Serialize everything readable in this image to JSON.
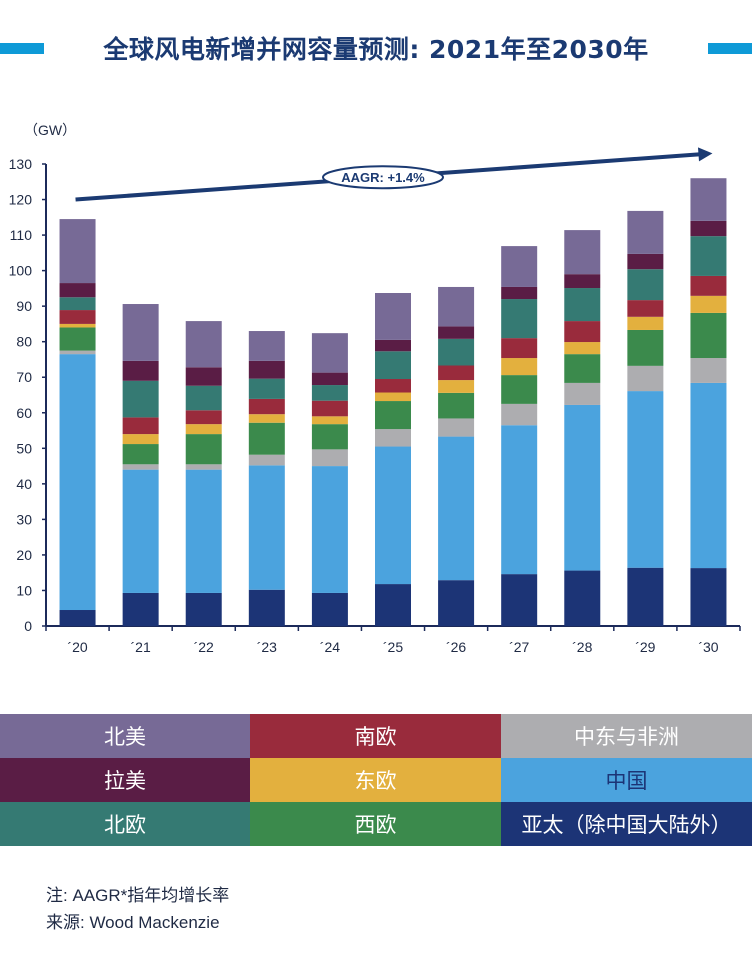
{
  "header": {
    "title": "全球风电新增并网容量预测: 2021年至2030年"
  },
  "chart_data": {
    "type": "bar",
    "stacked": true,
    "title": "全球风电新增并网容量预测: 2021年至2030年",
    "xlabel": "",
    "ylabel": "（GW）",
    "ylim": [
      0,
      130
    ],
    "yticks": [
      0,
      10,
      20,
      30,
      40,
      50,
      60,
      70,
      80,
      90,
      100,
      110,
      120,
      130
    ],
    "grid": false,
    "legend_position": "bottom",
    "categories": [
      "´20",
      "´21",
      "´22",
      "´23",
      "´24",
      "´25",
      "´26",
      "´27",
      "´28",
      "´29",
      "´30"
    ],
    "series": [
      {
        "name": "亚太（除中国大陆外）",
        "color": "#1c3476",
        "values": [
          4.5,
          9.3,
          9.3,
          10.2,
          9.3,
          11.8,
          12.9,
          14.6,
          15.6,
          16.4,
          16.3
        ]
      },
      {
        "name": "中国",
        "color": "#4ba3de",
        "values": [
          72.0,
          34.7,
          34.7,
          35.0,
          35.7,
          38.7,
          40.4,
          41.9,
          46.6,
          49.7,
          52.1
        ]
      },
      {
        "name": "中东与非洲",
        "color": "#adadb0",
        "values": [
          1.0,
          1.5,
          1.5,
          3.0,
          4.7,
          4.9,
          5.1,
          6.0,
          6.2,
          7.1,
          7.0
        ]
      },
      {
        "name": "西欧",
        "color": "#3b8a4c",
        "values": [
          6.5,
          5.7,
          8.5,
          9.0,
          7.1,
          7.9,
          7.2,
          8.1,
          8.1,
          10.1,
          12.7
        ]
      },
      {
        "name": "东欧",
        "color": "#e3b03e",
        "values": [
          1.0,
          2.8,
          2.8,
          2.4,
          2.2,
          2.4,
          3.6,
          4.8,
          3.4,
          3.7,
          4.8
        ]
      },
      {
        "name": "南欧",
        "color": "#992b3c",
        "values": [
          3.9,
          4.7,
          3.9,
          4.3,
          4.4,
          3.8,
          4.1,
          5.6,
          5.9,
          4.7,
          5.6
        ]
      },
      {
        "name": "北欧",
        "color": "#357a73",
        "values": [
          3.6,
          10.3,
          6.9,
          5.7,
          4.4,
          7.8,
          7.5,
          11.0,
          9.3,
          8.7,
          11.2
        ]
      },
      {
        "name": "拉美",
        "color": "#5a1d45",
        "values": [
          4.0,
          5.6,
          5.2,
          5.0,
          3.5,
          3.2,
          3.5,
          3.4,
          3.9,
          4.3,
          4.3
        ]
      },
      {
        "name": "北美",
        "color": "#776a96",
        "values": [
          18.0,
          16.0,
          13.0,
          8.4,
          11.1,
          13.2,
          11.1,
          11.5,
          12.4,
          12.1,
          12.0
        ]
      }
    ],
    "totals": [
      114.5,
      90.6,
      85.8,
      83.0,
      82.4,
      93.7,
      95.4,
      106.9,
      111.4,
      116.8,
      126.0
    ],
    "annotation": {
      "text": "AAGR: +1.4%",
      "type": "trend-arrow",
      "from_value": 120,
      "to_value": 133
    }
  },
  "legend": [
    {
      "label": "北美",
      "bg": "#776a96",
      "fg": "#ffffff"
    },
    {
      "label": "南欧",
      "bg": "#992b3c",
      "fg": "#ffffff"
    },
    {
      "label": "中东与非洲",
      "bg": "#adadb0",
      "fg": "#ffffff"
    },
    {
      "label": "拉美",
      "bg": "#5a1d45",
      "fg": "#ffffff"
    },
    {
      "label": "东欧",
      "bg": "#e3b03e",
      "fg": "#ffffff"
    },
    {
      "label": "中国",
      "bg": "#4ba3de",
      "fg": "#1c3476"
    },
    {
      "label": "北欧",
      "bg": "#357a73",
      "fg": "#ffffff"
    },
    {
      "label": "西欧",
      "bg": "#3b8a4c",
      "fg": "#ffffff"
    },
    {
      "label": "亚太（除中国大陆外）",
      "bg": "#1c3476",
      "fg": "#ffffff"
    }
  ],
  "notes": {
    "line1": "注: AAGR*指年均增长率",
    "line2": "来源: Wood Mackenzie"
  },
  "colors": {
    "accent": "#0e9ad7",
    "axis": "#1c2a5a",
    "title": "#1b3a72"
  }
}
